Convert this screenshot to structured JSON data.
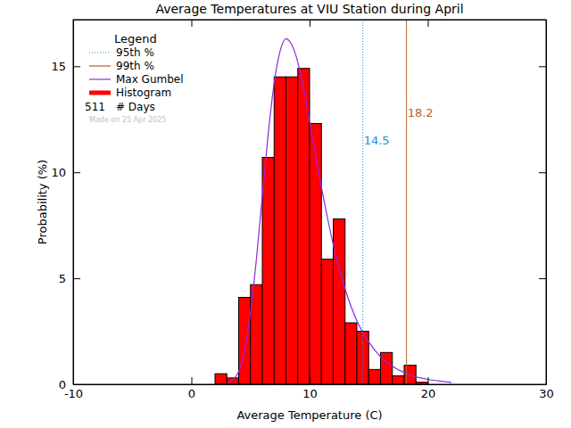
{
  "chart_data": {
    "type": "histogram",
    "title": "Average Temperatures at VIU Station during April",
    "x_label": "Average Temperature (C)",
    "y_label": "Probability (%)",
    "xlim": [
      -10,
      30
    ],
    "xticks": [
      -10,
      0,
      10,
      20,
      30
    ],
    "ylim": [
      0,
      17.2
    ],
    "yticks": [
      0,
      5,
      10,
      15
    ],
    "legend_title": "Legend",
    "legend": "top-left",
    "bins": [
      2,
      3,
      4,
      5,
      6,
      7,
      8,
      9,
      10,
      11,
      12,
      13,
      14,
      15,
      16,
      17,
      18,
      19,
      20
    ],
    "series": [
      {
        "name": "Max Gumbel",
        "type": "line",
        "color": "#8a2be2",
        "x": [
          3,
          4,
          4.5,
          5,
          5.5,
          6,
          6.5,
          7,
          7.5,
          8,
          8.5,
          9,
          9.5,
          10,
          11,
          12,
          13,
          14,
          15,
          16,
          17,
          18,
          19,
          20,
          21,
          22
        ],
        "values": [
          0.03,
          0.59,
          1.6,
          3.4,
          5.9,
          8.9,
          11.8,
          14.2,
          15.7,
          16.3,
          16.0,
          15.2,
          13.9,
          12.4,
          9.3,
          6.6,
          4.5,
          3.0,
          2.0,
          1.3,
          0.85,
          0.55,
          0.35,
          0.23,
          0.15,
          0.09
        ]
      },
      {
        "name": "Histogram",
        "type": "bar",
        "color": "#ff0000",
        "values": [
          0.5,
          0.3,
          4.1,
          4.7,
          10.7,
          14.5,
          14.5,
          14.9,
          12.3,
          5.9,
          7.8,
          2.9,
          2.5,
          0.7,
          1.5,
          0.4,
          0.9,
          0.1
        ]
      }
    ],
    "annotations": [
      {
        "name": "95th %",
        "value": 14.5,
        "color": "#1f8fd0",
        "line_style": "dotted"
      },
      {
        "name": "99th %",
        "value": 18.2,
        "color": "#b8602a",
        "line_style": "solid"
      }
    ],
    "days": {
      "value": 511,
      "label": "# Days"
    },
    "note": "Made on 25 Apr 2025"
  }
}
